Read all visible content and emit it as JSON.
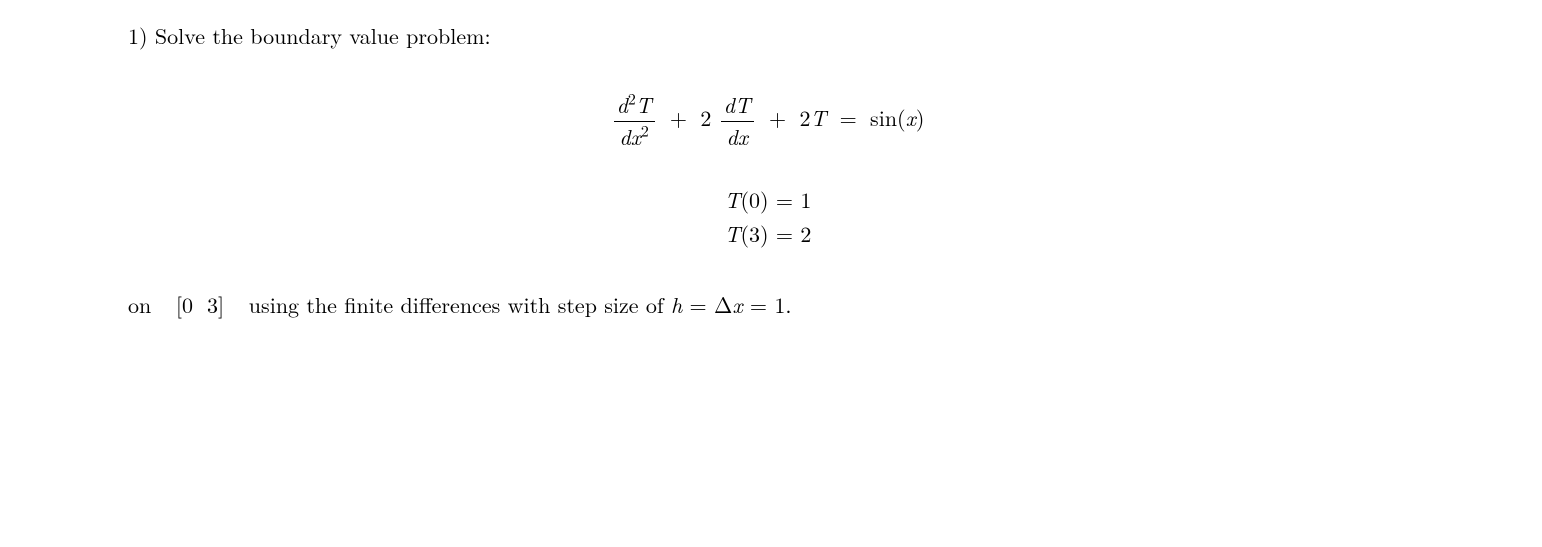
{
  "problem": {
    "number_label": "1)",
    "prompt": "Solve the boundary value problem:"
  },
  "equation": {
    "term1_num_html": "<span class='mi'>d</span><sup>2</sup><span class='mi'>T</span>",
    "term1_den_html": "<span class='mi'>d</span><span class='mi'>x</span><sup>2</sup>",
    "plus1": "+",
    "coef2": "2",
    "term2_num_html": "<span class='mi'>d</span><span class='mi'>T</span>",
    "term2_den_html": "<span class='mi'>d</span><span class='mi'>x</span>",
    "plus2": "+",
    "term3_html": "2<span class='mi'>T</span>",
    "eq": "=",
    "rhs_html": "sin(<span class='mi'>x</span>)"
  },
  "boundary": {
    "bc1_html": "<span class='mi'>T</span>(0) = 1",
    "bc2_html": "<span class='mi'>T</span>(3) = 2"
  },
  "footer": {
    "on_text": "on",
    "interval_html": "[0<span class='sp3'></span>3]",
    "rest_html": "using the finite differences with step size of <span class='mi'>h</span> = &Delta;<span class='mi'>x</span> = 1."
  }
}
